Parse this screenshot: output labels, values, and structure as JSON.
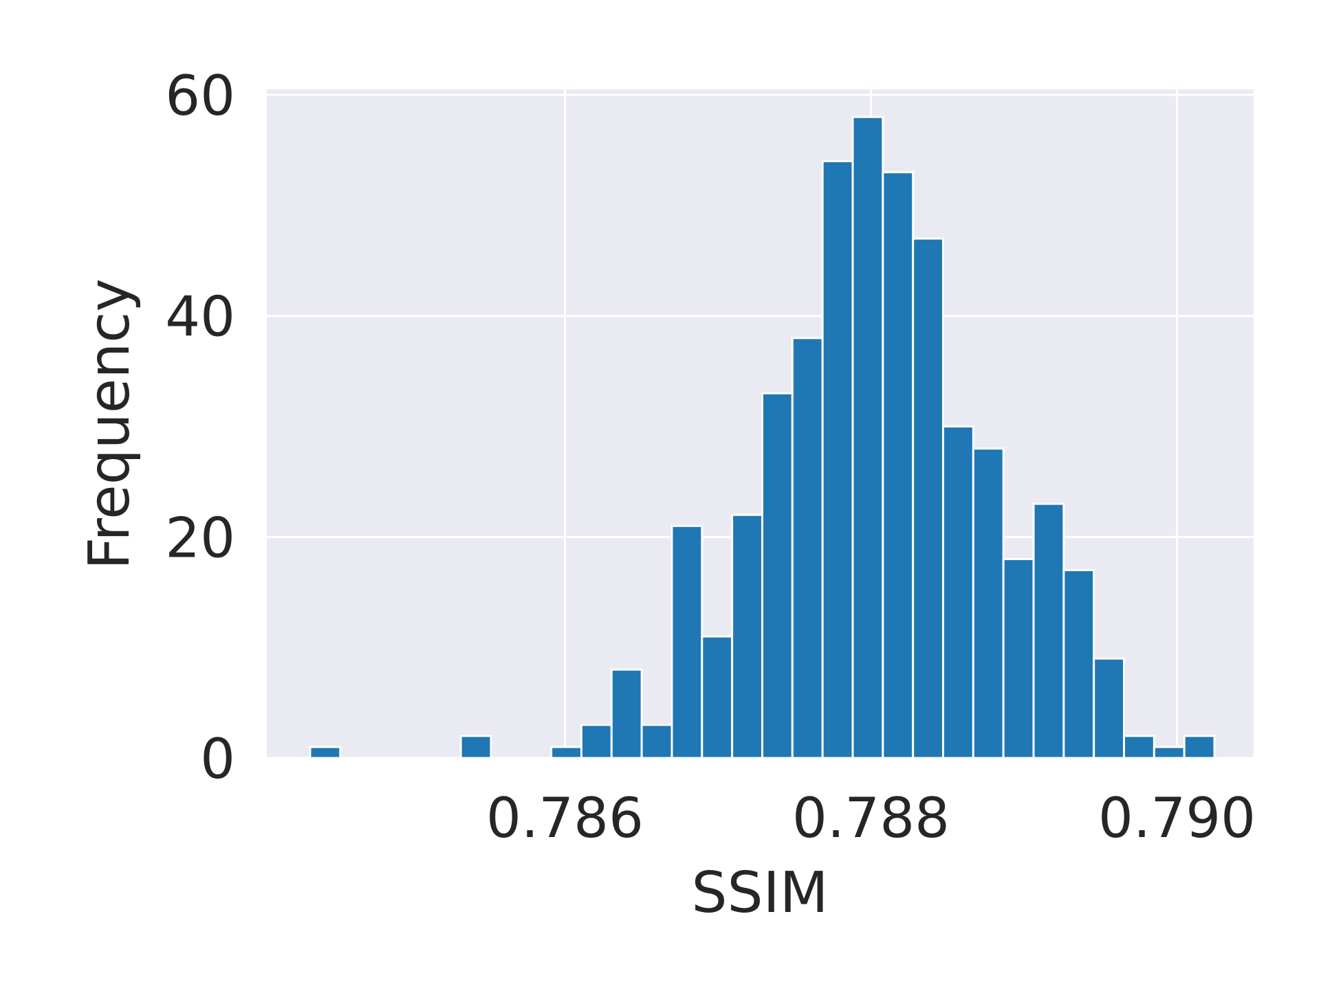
{
  "chart_data": {
    "type": "bar",
    "xlabel": "SSIM",
    "ylabel": "Frequency",
    "xlim": [
      0.784052,
      0.790501
    ],
    "ylim": [
      0,
      60.5
    ],
    "xticks": [
      0.786,
      0.788,
      0.79
    ],
    "xtick_labels": [
      "0.786",
      "0.788",
      "0.790"
    ],
    "yticks": [
      0,
      20,
      40,
      60
    ],
    "ytick_labels": [
      "0",
      "20",
      "40",
      "60"
    ],
    "grid": true,
    "bins": [
      {
        "x0": 0.784335,
        "x1": 0.784532,
        "count": 1
      },
      {
        "x0": 0.78532,
        "x1": 0.785517,
        "count": 2
      },
      {
        "x0": 0.785911,
        "x1": 0.786108,
        "count": 1
      },
      {
        "x0": 0.786108,
        "x1": 0.786305,
        "count": 3
      },
      {
        "x0": 0.786305,
        "x1": 0.786502,
        "count": 8
      },
      {
        "x0": 0.786502,
        "x1": 0.786699,
        "count": 3
      },
      {
        "x0": 0.786699,
        "x1": 0.786896,
        "count": 21
      },
      {
        "x0": 0.786896,
        "x1": 0.787093,
        "count": 11
      },
      {
        "x0": 0.787093,
        "x1": 0.78729,
        "count": 22
      },
      {
        "x0": 0.78729,
        "x1": 0.787487,
        "count": 33
      },
      {
        "x0": 0.787487,
        "x1": 0.787684,
        "count": 38
      },
      {
        "x0": 0.787684,
        "x1": 0.787881,
        "count": 54
      },
      {
        "x0": 0.787881,
        "x1": 0.788078,
        "count": 58
      },
      {
        "x0": 0.788078,
        "x1": 0.788275,
        "count": 53
      },
      {
        "x0": 0.788275,
        "x1": 0.788472,
        "count": 47
      },
      {
        "x0": 0.788472,
        "x1": 0.788669,
        "count": 30
      },
      {
        "x0": 0.788669,
        "x1": 0.788866,
        "count": 28
      },
      {
        "x0": 0.788866,
        "x1": 0.789063,
        "count": 18
      },
      {
        "x0": 0.789063,
        "x1": 0.78926,
        "count": 23
      },
      {
        "x0": 0.78926,
        "x1": 0.789457,
        "count": 17
      },
      {
        "x0": 0.789457,
        "x1": 0.789654,
        "count": 9
      },
      {
        "x0": 0.789654,
        "x1": 0.789851,
        "count": 2
      },
      {
        "x0": 0.789851,
        "x1": 0.790048,
        "count": 1
      },
      {
        "x0": 0.790048,
        "x1": 0.790245,
        "count": 2
      }
    ],
    "colors": {
      "bar": "#1f77b4",
      "bar_edge": "#ffffff",
      "plot_background": "#eaeaf2",
      "grid": "#ffffff",
      "text": "#262626"
    }
  }
}
